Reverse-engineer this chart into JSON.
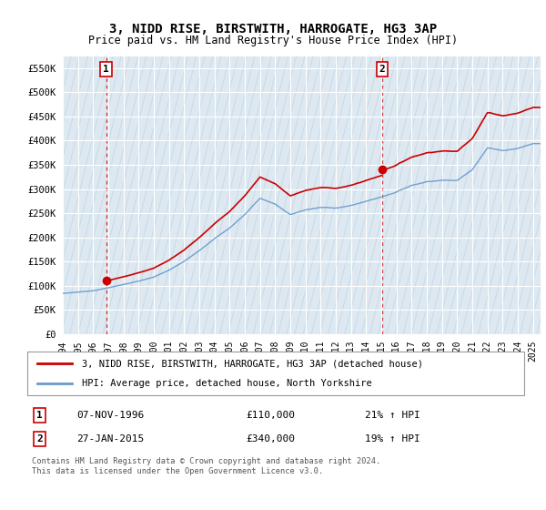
{
  "title": "3, NIDD RISE, BIRSTWITH, HARROGATE, HG3 3AP",
  "subtitle": "Price paid vs. HM Land Registry's House Price Index (HPI)",
  "ylim": [
    0,
    575000
  ],
  "yticks": [
    0,
    50000,
    100000,
    150000,
    200000,
    250000,
    300000,
    350000,
    400000,
    450000,
    500000,
    550000
  ],
  "ytick_labels": [
    "£0",
    "£50K",
    "£100K",
    "£150K",
    "£200K",
    "£250K",
    "£300K",
    "£350K",
    "£400K",
    "£450K",
    "£500K",
    "£550K"
  ],
  "sale1_date": 1996.85,
  "sale1_price": 110000,
  "sale1_label": "1",
  "sale2_date": 2015.07,
  "sale2_price": 340000,
  "sale2_label": "2",
  "red_line_color": "#cc0000",
  "blue_line_color": "#6699cc",
  "background_color": "#dde8f0",
  "grid_color": "#ffffff",
  "hatch_color": "#c8d8e8",
  "legend_label_red": "3, NIDD RISE, BIRSTWITH, HARROGATE, HG3 3AP (detached house)",
  "legend_label_blue": "HPI: Average price, detached house, North Yorkshire",
  "footnote1": "Contains HM Land Registry data © Crown copyright and database right 2024.",
  "footnote2": "This data is licensed under the Open Government Licence v3.0.",
  "xmin": 1994.0,
  "xmax": 2025.5,
  "xtick_years": [
    1994,
    1995,
    1996,
    1997,
    1998,
    1999,
    2000,
    2001,
    2002,
    2003,
    2004,
    2005,
    2006,
    2007,
    2008,
    2009,
    2010,
    2011,
    2012,
    2013,
    2014,
    2015,
    2016,
    2017,
    2018,
    2019,
    2020,
    2021,
    2022,
    2023,
    2024,
    2025
  ]
}
